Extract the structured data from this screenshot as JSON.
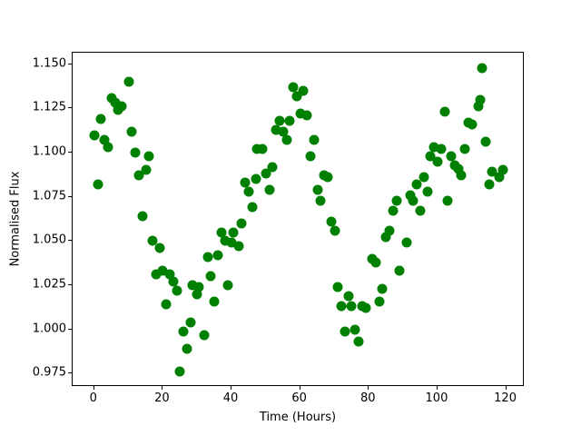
{
  "figure": {
    "background": "#ffffff",
    "plot_background": "#ffffff",
    "spine_color": "#000000"
  },
  "chart_data": {
    "type": "scatter",
    "title": "",
    "xlabel": "Time (Hours)",
    "ylabel": "Normalised Flux",
    "legend": null,
    "grid": false,
    "marker": "circle",
    "marker_color": "#008000",
    "marker_diameter_px": 11,
    "xlim": [
      -6.3,
      125.4
    ],
    "ylim": [
      0.9675,
      1.1565
    ],
    "xticks": [
      0,
      20,
      40,
      60,
      80,
      100,
      120
    ],
    "xtick_labels": [
      "0",
      "20",
      "40",
      "60",
      "80",
      "100",
      "120"
    ],
    "yticks": [
      0.975,
      1.0,
      1.025,
      1.05,
      1.075,
      1.1,
      1.125,
      1.15
    ],
    "ytick_labels": [
      "0.975",
      "1.000",
      "1.025",
      "1.050",
      "1.075",
      "1.100",
      "1.125",
      "1.150"
    ],
    "points": [
      [
        0,
        1.11
      ],
      [
        1,
        1.082
      ],
      [
        2,
        1.119
      ],
      [
        3,
        1.107
      ],
      [
        4,
        1.103
      ],
      [
        5,
        1.131
      ],
      [
        6,
        1.128
      ],
      [
        7,
        1.124
      ],
      [
        8,
        1.126
      ],
      [
        10,
        1.14
      ],
      [
        11,
        1.112
      ],
      [
        12,
        1.1
      ],
      [
        13,
        1.087
      ],
      [
        14,
        1.064
      ],
      [
        15,
        1.09
      ],
      [
        16,
        1.098
      ],
      [
        17,
        1.05
      ],
      [
        18,
        1.031
      ],
      [
        19,
        1.046
      ],
      [
        20,
        1.033
      ],
      [
        21,
        1.014
      ],
      [
        22,
        1.031
      ],
      [
        23,
        1.027
      ],
      [
        24,
        1.022
      ],
      [
        25,
        0.976
      ],
      [
        26,
        0.999
      ],
      [
        27,
        0.989
      ],
      [
        28,
        1.004
      ],
      [
        28.5,
        1.025
      ],
      [
        30,
        1.02
      ],
      [
        30.5,
        1.024
      ],
      [
        32,
        0.997
      ],
      [
        33,
        1.041
      ],
      [
        34,
        1.03
      ],
      [
        35,
        1.016
      ],
      [
        36,
        1.042
      ],
      [
        37,
        1.055
      ],
      [
        38,
        1.05
      ],
      [
        39,
        1.025
      ],
      [
        40,
        1.049
      ],
      [
        40.5,
        1.055
      ],
      [
        42,
        1.047
      ],
      [
        43,
        1.06
      ],
      [
        44,
        1.083
      ],
      [
        45,
        1.078
      ],
      [
        46,
        1.069
      ],
      [
        47,
        1.085
      ],
      [
        47.5,
        1.102
      ],
      [
        49,
        1.102
      ],
      [
        50,
        1.088
      ],
      [
        51,
        1.079
      ],
      [
        52,
        1.092
      ],
      [
        53,
        1.113
      ],
      [
        54,
        1.118
      ],
      [
        55,
        1.112
      ],
      [
        56,
        1.107
      ],
      [
        57,
        1.118
      ],
      [
        58,
        1.137
      ],
      [
        59,
        1.132
      ],
      [
        60,
        1.122
      ],
      [
        61,
        1.135
      ],
      [
        62,
        1.121
      ],
      [
        63,
        1.098
      ],
      [
        64,
        1.107
      ],
      [
        65,
        1.079
      ],
      [
        66,
        1.073
      ],
      [
        67,
        1.087
      ],
      [
        68,
        1.086
      ],
      [
        69,
        1.061
      ],
      [
        70,
        1.056
      ],
      [
        71,
        1.024
      ],
      [
        72,
        1.013
      ],
      [
        73,
        0.999
      ],
      [
        74,
        1.019
      ],
      [
        75,
        1.013
      ],
      [
        76,
        1.0
      ],
      [
        77,
        0.993
      ],
      [
        78,
        1.013
      ],
      [
        79,
        1.012
      ],
      [
        81,
        1.04
      ],
      [
        82,
        1.038
      ],
      [
        83,
        1.016
      ],
      [
        84,
        1.023
      ],
      [
        85,
        1.052
      ],
      [
        86,
        1.056
      ],
      [
        87,
        1.067
      ],
      [
        88,
        1.073
      ],
      [
        89,
        1.033
      ],
      [
        91,
        1.049
      ],
      [
        92,
        1.076
      ],
      [
        93,
        1.073
      ],
      [
        94,
        1.082
      ],
      [
        95,
        1.067
      ],
      [
        96,
        1.086
      ],
      [
        97,
        1.078
      ],
      [
        98,
        1.098
      ],
      [
        99,
        1.103
      ],
      [
        100,
        1.095
      ],
      [
        101,
        1.102
      ],
      [
        102,
        1.123
      ],
      [
        103,
        1.073
      ],
      [
        104,
        1.098
      ],
      [
        105,
        1.093
      ],
      [
        106,
        1.091
      ],
      [
        107,
        1.087
      ],
      [
        108,
        1.102
      ],
      [
        109,
        1.117
      ],
      [
        110,
        1.116
      ],
      [
        112,
        1.126
      ],
      [
        112.5,
        1.13
      ],
      [
        113,
        1.148
      ],
      [
        114,
        1.106
      ],
      [
        115,
        1.082
      ],
      [
        116,
        1.089
      ],
      [
        118,
        1.086
      ],
      [
        119,
        1.09
      ]
    ]
  }
}
